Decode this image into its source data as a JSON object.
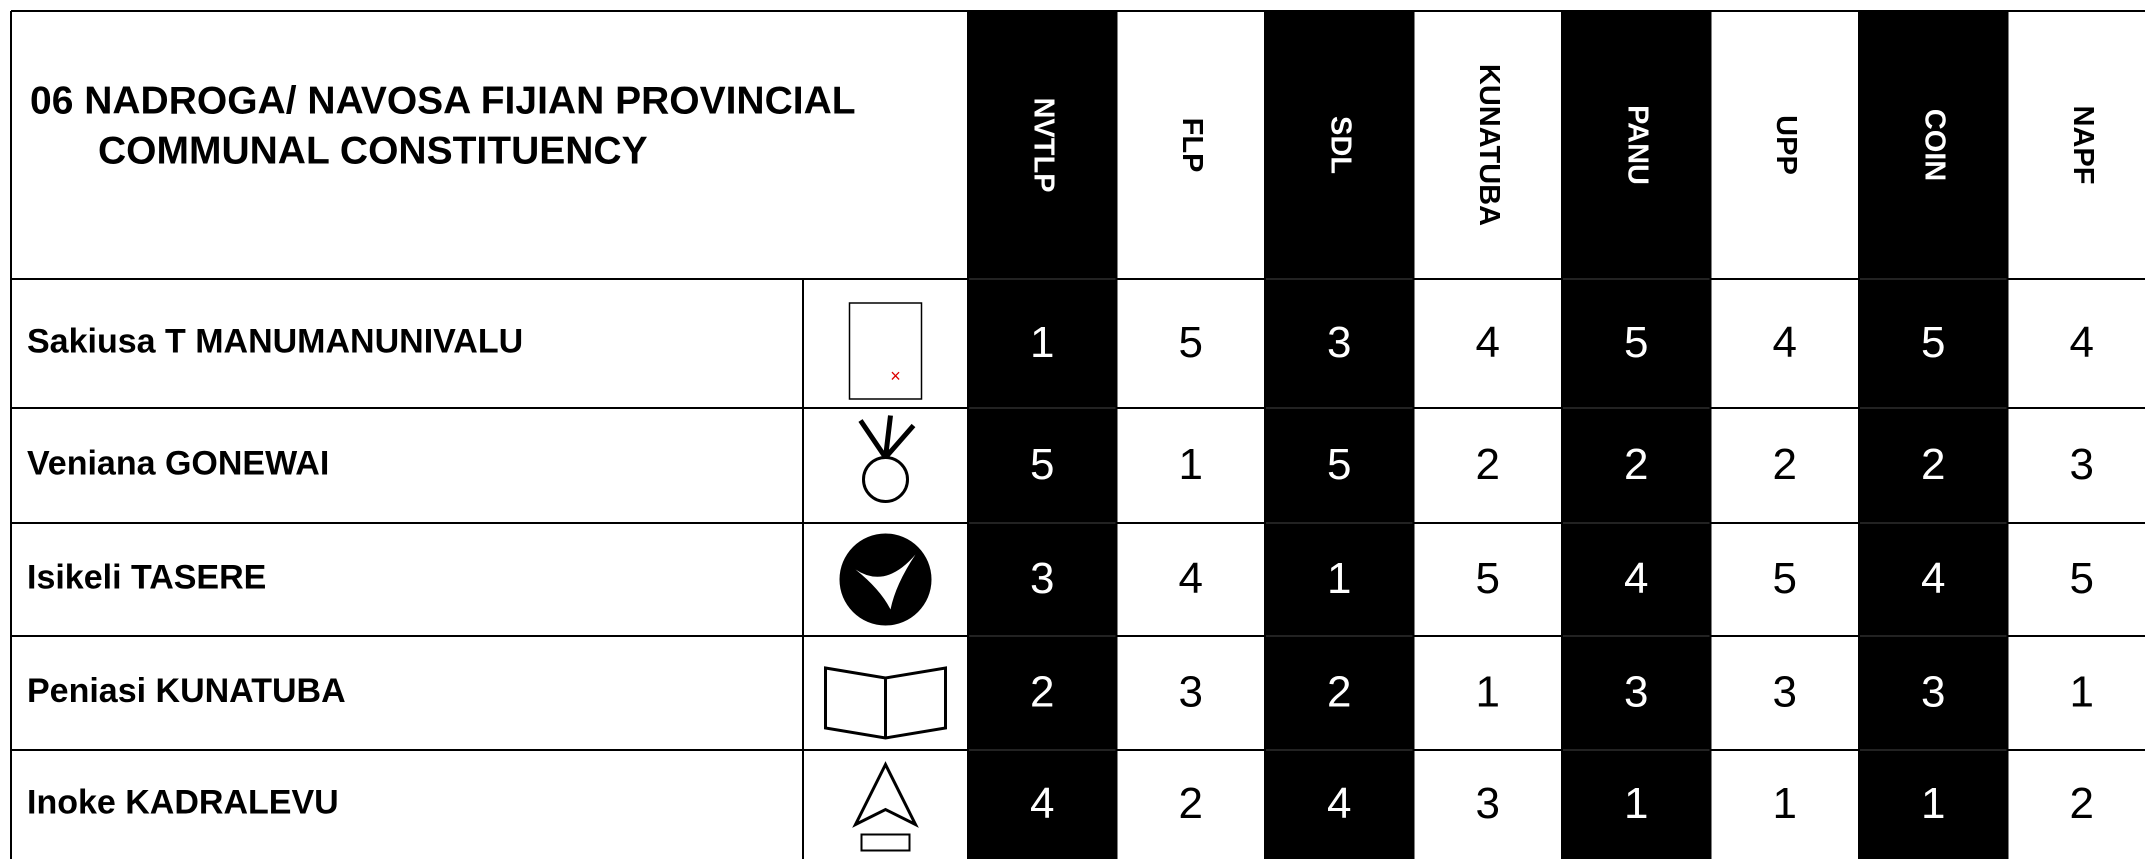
{
  "header": {
    "title": [
      "06 NADROGA/ NAVOSA FIJIAN PROVINCIAL",
      "COMMUNAL CONSTITUENCY"
    ],
    "parties": [
      "NVTLP",
      "FLP",
      "SDL",
      "KUNATUBA",
      "PANU",
      "UPP",
      "COIN",
      "NAPF"
    ]
  },
  "table": {
    "rows": [
      {
        "name": "Sakiusa T MANUMANUNIVALU",
        "ranks": [
          1,
          5,
          3,
          4,
          5,
          4,
          5,
          4
        ]
      },
      {
        "name": "Veniana GONEWAI",
        "ranks": [
          5,
          1,
          5,
          2,
          2,
          2,
          2,
          3
        ]
      },
      {
        "name": "Isikeli TASERE",
        "ranks": [
          3,
          4,
          1,
          5,
          4,
          5,
          4,
          5
        ]
      },
      {
        "name": "Peniasi KUNATUBA",
        "ranks": [
          2,
          3,
          2,
          1,
          3,
          3,
          3,
          1
        ]
      },
      {
        "name": "Inoke KADRALEVU",
        "ranks": [
          4,
          2,
          4,
          3,
          1,
          1,
          1,
          2
        ]
      }
    ]
  }
}
